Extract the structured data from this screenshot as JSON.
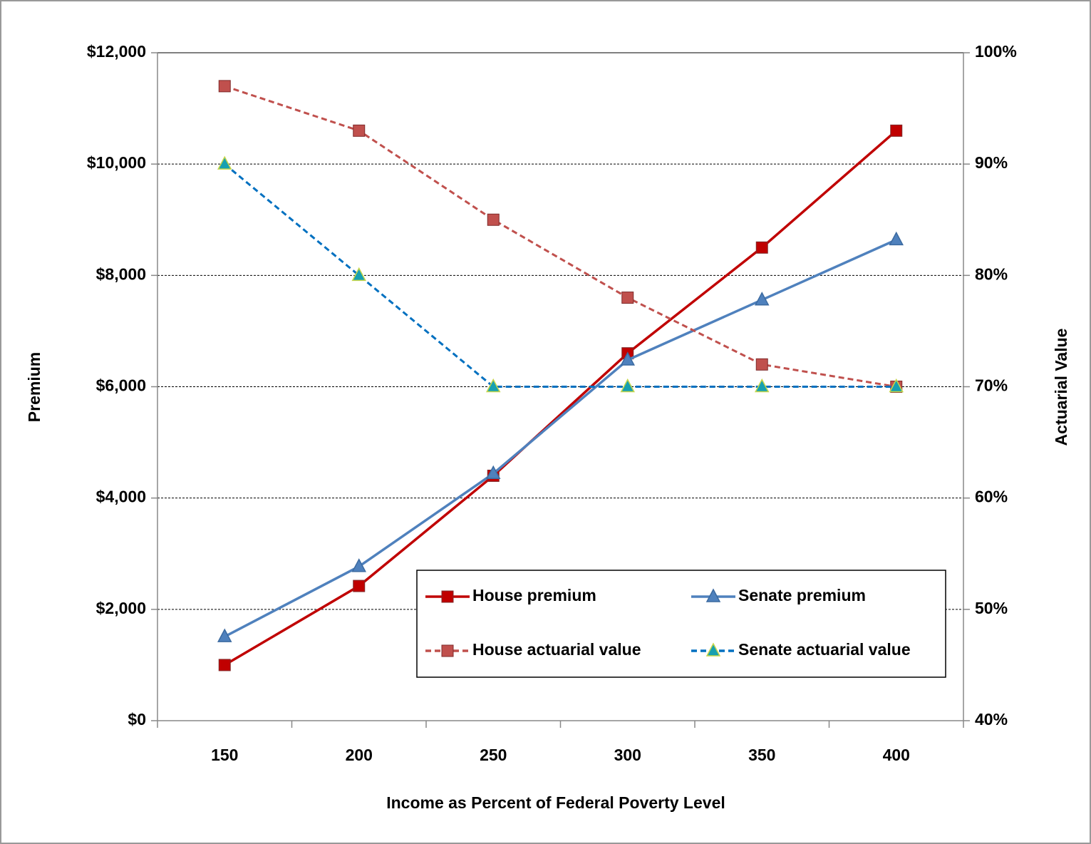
{
  "chart_data": {
    "type": "line",
    "x_label": "Income as Percent of Federal Poverty Level",
    "y_label": "Premium",
    "y2_label": "Actuarial Value",
    "categories": [
      "150",
      "200",
      "250",
      "300",
      "350",
      "400"
    ],
    "ylim": [
      0,
      12000
    ],
    "yticks": [
      {
        "value": 0,
        "label": "$0"
      },
      {
        "value": 2000,
        "label": "$2,000"
      },
      {
        "value": 4000,
        "label": "$4,000"
      },
      {
        "value": 6000,
        "label": "$6,000"
      },
      {
        "value": 8000,
        "label": "$8,000"
      },
      {
        "value": 10000,
        "label": "$10,000"
      },
      {
        "value": 12000,
        "label": "$12,000"
      }
    ],
    "y2lim": [
      40,
      100
    ],
    "y2ticks": [
      {
        "value": 40,
        "label": "40%"
      },
      {
        "value": 50,
        "label": "50%"
      },
      {
        "value": 60,
        "label": "60%"
      },
      {
        "value": 70,
        "label": "70%"
      },
      {
        "value": 80,
        "label": "80%"
      },
      {
        "value": 90,
        "label": "90%"
      },
      {
        "value": 100,
        "label": "100%"
      }
    ],
    "grid": true,
    "legend": "lower-right",
    "series": [
      {
        "name": "House premium",
        "color": "#c00000",
        "marker": "square",
        "dashed": false,
        "values": [
          1000,
          2420,
          4400,
          6600,
          8500,
          10600
        ]
      },
      {
        "name": "Senate premium",
        "color": "#4f81bd",
        "marker": "triangle",
        "dashed": false,
        "values": [
          1510,
          2770,
          4440,
          6480,
          7560,
          8640
        ]
      },
      {
        "name": "House actuarial value",
        "color": "#c0504d",
        "marker": "square",
        "dashed": true,
        "axis": "y2",
        "values": [
          97,
          93,
          85,
          78,
          72,
          70
        ]
      },
      {
        "name": "Senate actuarial value",
        "color": "#0070c0",
        "marker": "triangle",
        "dashed": true,
        "axis": "y2",
        "values": [
          90,
          80,
          70,
          70,
          70,
          70
        ]
      }
    ]
  }
}
